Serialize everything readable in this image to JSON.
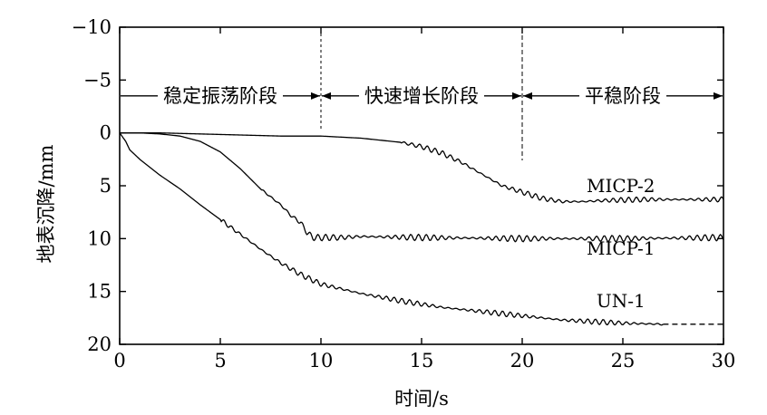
{
  "chart_data": {
    "type": "line",
    "xlabel": "时间/s",
    "ylabel": "地表沉降/mm",
    "xlim": [
      0,
      30
    ],
    "ylim": [
      20,
      -10
    ],
    "y_inverted": true,
    "x_ticks": [
      "0",
      "5",
      "10",
      "15",
      "20",
      "25",
      "30"
    ],
    "y_ticks": [
      "−10",
      "−5",
      "0",
      "5",
      "10",
      "15",
      "20"
    ],
    "grid": false,
    "legend": "none",
    "phase_boundaries": [
      10,
      20
    ],
    "phases": [
      {
        "label": "稳定振荡阶段",
        "start": 0,
        "end": 10
      },
      {
        "label": "快速增长阶段",
        "start": 10,
        "end": 20
      },
      {
        "label": "平稳阶段",
        "start": 20,
        "end": 30
      }
    ],
    "phase_arrow_y": -3.5,
    "series": [
      {
        "name": "MICP-2",
        "x": [
          0,
          2,
          4,
          6,
          8,
          10,
          12,
          14,
          15,
          16,
          17,
          18,
          19,
          20,
          21,
          22,
          23,
          24,
          26,
          28,
          30
        ],
        "y": [
          0,
          0,
          0.1,
          0.2,
          0.3,
          0.3,
          0.5,
          0.9,
          1.3,
          1.9,
          2.8,
          3.9,
          5.0,
          5.6,
          6.2,
          6.5,
          6.5,
          6.4,
          6.3,
          6.3,
          6.3
        ],
        "oscillation_from": 14,
        "oscillation_amp": 0.25
      },
      {
        "name": "MICP-1",
        "x": [
          0,
          1,
          2,
          3,
          4,
          5,
          6,
          7,
          8,
          8.5,
          9,
          9.3,
          9.6,
          10,
          11,
          12,
          15,
          20,
          25,
          30
        ],
        "y": [
          0,
          0,
          0.1,
          0.3,
          0.8,
          1.8,
          3.4,
          5.3,
          6.8,
          7.8,
          8.5,
          9.4,
          9.9,
          9.9,
          9.9,
          9.8,
          9.9,
          10.0,
          10.0,
          9.9
        ],
        "oscillation_from": 7,
        "oscillation_amp": 0.3
      },
      {
        "name": "UN-1",
        "x": [
          0,
          0.3,
          0.5,
          1,
          2,
          3,
          4,
          5,
          6,
          7,
          8,
          9,
          10,
          12,
          14,
          16,
          18,
          20,
          22,
          24,
          25,
          27
        ],
        "y": [
          0,
          0.8,
          1.6,
          2.5,
          4.0,
          5.3,
          6.8,
          8.2,
          9.6,
          11.0,
          12.3,
          13.4,
          14.3,
          15.2,
          15.9,
          16.5,
          16.9,
          17.3,
          17.7,
          17.9,
          18.0,
          18.1
        ],
        "oscillation_from": 5,
        "oscillation_amp": 0.25,
        "dashed_extension": {
          "x": [
            27,
            30
          ],
          "y": [
            18.1,
            18.1
          ]
        }
      }
    ]
  }
}
